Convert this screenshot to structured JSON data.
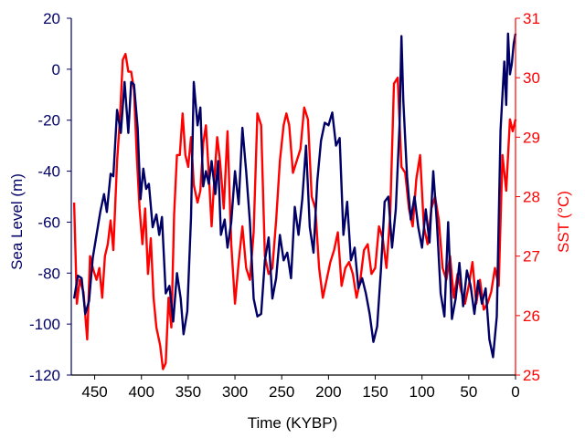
{
  "chart_data": {
    "type": "line",
    "xlabel": "Time (KYBP)",
    "ylabel_left": "Sea Level (m)",
    "ylabel_right": "SST (°C)",
    "xlim": [
      475,
      0
    ],
    "ylim_left": [
      -120,
      20
    ],
    "ylim_right": [
      25,
      31
    ],
    "x_ticks": [
      450,
      400,
      350,
      300,
      250,
      200,
      150,
      100,
      50,
      0
    ],
    "y_ticks_left": [
      20,
      0,
      -20,
      -40,
      -60,
      -80,
      -100,
      -120
    ],
    "y_ticks_right": [
      31,
      30,
      29,
      28,
      27,
      26,
      25
    ],
    "grid": false,
    "colors": {
      "sea_level": "#000066",
      "sst": "#ff0000",
      "axis": "#000000"
    },
    "series": [
      {
        "axis": "left",
        "x": [
          472,
          468,
          464,
          460,
          456,
          452,
          448,
          444,
          440,
          437,
          433,
          430,
          426,
          422,
          418,
          414,
          411,
          408,
          404,
          401,
          398,
          395,
          392,
          388,
          384,
          381,
          378,
          374,
          370,
          366,
          362,
          358,
          355,
          351,
          347,
          344,
          340,
          337,
          334,
          331,
          328,
          325,
          321,
          318,
          315,
          311,
          308,
          304,
          300,
          296,
          292,
          288,
          284,
          280,
          276,
          272,
          268,
          264,
          260,
          256,
          252,
          248,
          244,
          240,
          236,
          232,
          228,
          224,
          220,
          216,
          212,
          208,
          204,
          200,
          196,
          192,
          188,
          184,
          180,
          176,
          172,
          168,
          164,
          160,
          156,
          152,
          148,
          144,
          140,
          136,
          132,
          128,
          124,
          122,
          120,
          116,
          112,
          108,
          104,
          100,
          96,
          92,
          88,
          84,
          80,
          76,
          72,
          68,
          64,
          60,
          56,
          52,
          48,
          44,
          40,
          36,
          32,
          28,
          24,
          20,
          16,
          12,
          10,
          8,
          6,
          4,
          2,
          0
        ],
        "values": [
          -90,
          -81,
          -82,
          -96,
          -91,
          -74,
          -65,
          -56,
          -49,
          -56,
          -41,
          -42,
          -16,
          -25,
          -5,
          -25,
          -5,
          -6,
          -23,
          -51,
          -39,
          -47,
          -45,
          -62,
          -57,
          -65,
          -58,
          -88,
          -85,
          -99,
          -80,
          -90,
          -104,
          -95,
          -58,
          -5,
          -22,
          -15,
          -46,
          -40,
          -45,
          -36,
          -49,
          -36,
          -65,
          -59,
          -70,
          -60,
          -40,
          -53,
          -23,
          -40,
          -60,
          -90,
          -97,
          -96,
          -75,
          -66,
          -90,
          -82,
          -65,
          -75,
          -72,
          -82,
          -54,
          -65,
          -51,
          -30,
          -62,
          -72,
          -44,
          -28,
          -21,
          -22,
          -17,
          -30,
          -27,
          -65,
          -52,
          -75,
          -70,
          -86,
          -82,
          -88,
          -96,
          -107,
          -101,
          -79,
          -52,
          -50,
          -70,
          -55,
          -22,
          13,
          -12,
          -42,
          -59,
          -50,
          -62,
          -70,
          -55,
          -68,
          -40,
          -61,
          -88,
          -97,
          -60,
          -98,
          -90,
          -76,
          -93,
          -79,
          -85,
          -96,
          -83,
          -92,
          -86,
          -106,
          -113,
          -97,
          -24,
          3,
          -14,
          14,
          -2,
          2,
          10,
          14
        ]
      },
      {
        "axis": "right",
        "x": [
          472,
          469,
          466,
          462,
          458,
          455,
          452,
          448,
          445,
          442,
          439,
          436,
          433,
          430,
          426,
          423,
          420,
          417,
          414,
          411,
          408,
          405,
          402,
          399,
          396,
          393,
          390,
          387,
          384,
          380,
          377,
          374,
          371,
          368,
          365,
          362,
          359,
          356,
          353,
          350,
          347,
          344,
          340,
          337,
          334,
          331,
          328,
          325,
          322,
          319,
          316,
          312,
          308,
          304,
          300,
          296,
          292,
          288,
          284,
          280,
          276,
          272,
          268,
          264,
          260,
          256,
          252,
          248,
          245,
          242,
          238,
          234,
          230,
          226,
          222,
          218,
          214,
          210,
          206,
          202,
          198,
          194,
          190,
          186,
          182,
          178,
          174,
          170,
          166,
          162,
          158,
          154,
          150,
          146,
          142,
          138,
          134,
          130,
          126,
          122,
          118,
          114,
          110,
          106,
          102,
          98,
          94,
          90,
          86,
          82,
          78,
          74,
          70,
          66,
          62,
          58,
          54,
          50,
          46,
          42,
          38,
          34,
          30,
          26,
          22,
          18,
          14,
          10,
          6,
          3,
          0
        ],
        "values": [
          27.9,
          26.2,
          26.6,
          26.4,
          25.6,
          27,
          26.8,
          26.6,
          26.8,
          26.3,
          27,
          27.2,
          27.6,
          27.1,
          28.6,
          29.3,
          30.3,
          30.4,
          30.1,
          30.1,
          29.8,
          28.7,
          27.8,
          27.2,
          27.8,
          26.7,
          27.3,
          26.3,
          25.8,
          25.5,
          25.1,
          25.2,
          26.3,
          25.8,
          27.7,
          28.7,
          28.7,
          29.4,
          28.7,
          28.5,
          29,
          28.2,
          27.9,
          28.1,
          28.9,
          29.2,
          28.4,
          27.5,
          28.3,
          29,
          28.6,
          27.8,
          29.1,
          27.2,
          26.2,
          26.9,
          27.5,
          26.8,
          26.6,
          27.4,
          29.4,
          29.2,
          27,
          26.7,
          26.8,
          27.6,
          28.6,
          29.2,
          29.4,
          29.2,
          28.4,
          28.6,
          28.8,
          29.5,
          29.3,
          28,
          27.8,
          26.8,
          26.3,
          26.6,
          26.9,
          27.1,
          27.4,
          26.5,
          26.8,
          26.9,
          26.7,
          26.3,
          26.6,
          27.1,
          27.2,
          26.7,
          26.8,
          27.5,
          27.3,
          26.8,
          27.7,
          29.9,
          30,
          28.5,
          28.4,
          27.8,
          27.5,
          28.3,
          28.7,
          27.5,
          27.2,
          27.8,
          28,
          27.6,
          26.8,
          26.6,
          27,
          26.3,
          26.7,
          26.4,
          26.2,
          26.5,
          26.9,
          26.2,
          26.6,
          26.1,
          26.2,
          26.4,
          26.8,
          26.5,
          28.7,
          28.1,
          29.3,
          29.1,
          29.3
        ]
      }
    ]
  }
}
